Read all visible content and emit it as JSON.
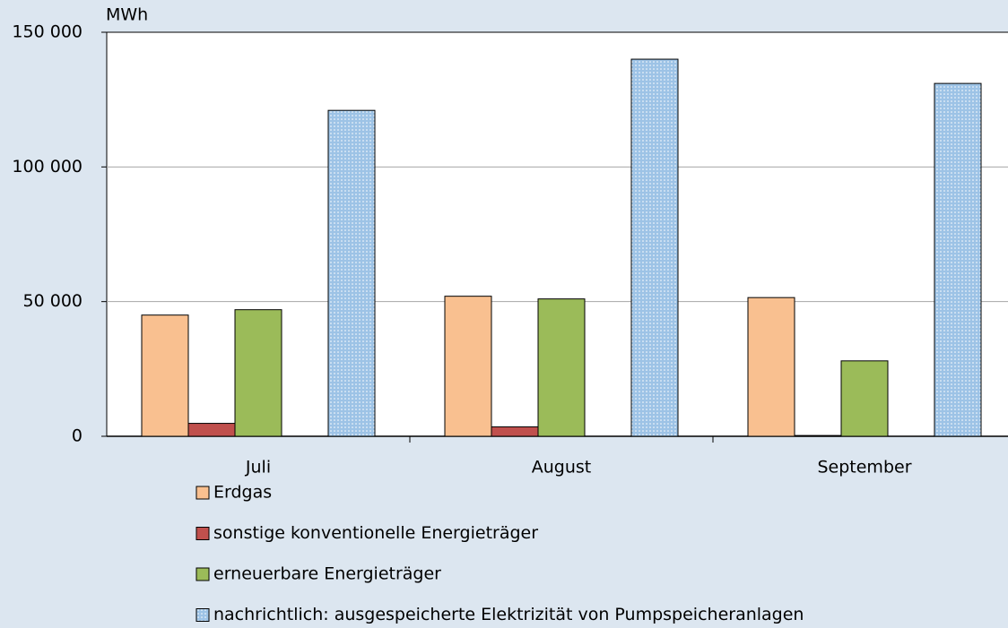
{
  "chart_data": {
    "type": "bar",
    "y_label": "MWh",
    "categories": [
      "Juli",
      "August",
      "September"
    ],
    "series": [
      {
        "name": "Erdgas",
        "color": "#f9c090",
        "values": [
          45000,
          52000,
          51500
        ]
      },
      {
        "name": "sonstige konventionelle Energieträger",
        "color": "#c0504d",
        "values": [
          4800,
          3500,
          300
        ]
      },
      {
        "name": "erneuerbare Energieträger",
        "color": "#9bbb59",
        "values": [
          47000,
          51000,
          28000
        ]
      },
      {
        "name": "nachrichtlich: ausgespeicherte Elektrizität von Pumpspeicheranlagen",
        "color": "#9dc3e6",
        "pattern": "dotted",
        "values": [
          121000,
          140000,
          131000
        ]
      }
    ],
    "ylim": [
      0,
      150000
    ],
    "yticks": [
      0,
      {
        "value": 50000,
        "label": "50 000"
      },
      {
        "value": 100000,
        "label": "100 000"
      },
      {
        "value": 150000,
        "label": "150 000"
      }
    ],
    "grid": true
  }
}
